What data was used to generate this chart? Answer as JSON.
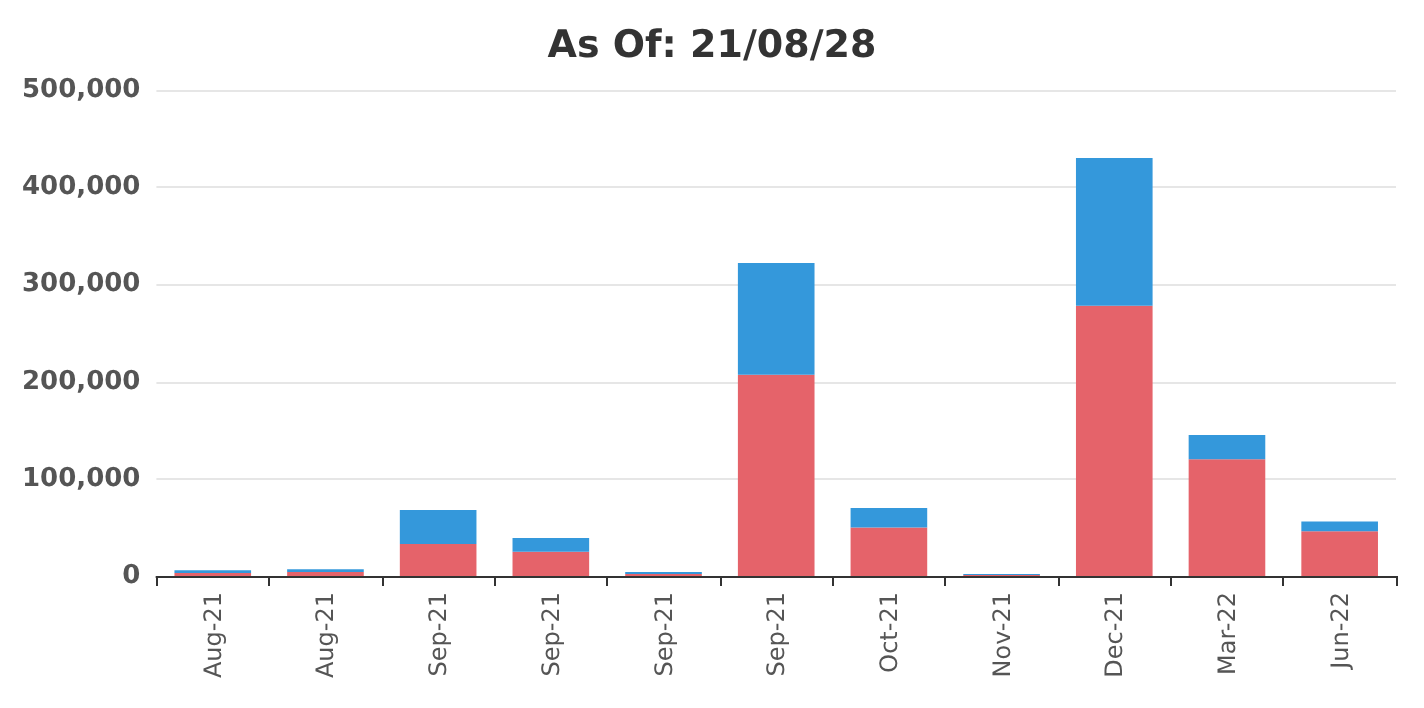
{
  "chart_data": {
    "type": "bar",
    "title": "As Of: 21/08/28",
    "stacked": true,
    "grid": "y",
    "categories": [
      "Aug-21",
      "Aug-21",
      "Sep-21",
      "Sep-21",
      "Sep-21",
      "Sep-21",
      "Oct-21",
      "Nov-21",
      "Dec-21",
      "Mar-22",
      "Jun-22"
    ],
    "series": [
      {
        "color": "#e5636a",
        "values": [
          3000,
          4000,
          33000,
          25000,
          2000,
          207000,
          50000,
          1000,
          278000,
          120000,
          46000
        ]
      },
      {
        "color": "#3498db",
        "values": [
          3000,
          3000,
          35000,
          14000,
          2000,
          115000,
          20000,
          1000,
          152000,
          25000,
          10000
        ]
      }
    ],
    "ylim": [
      0,
      500000
    ],
    "yticks": [
      0,
      {
        "value": 100000,
        "label": "100,000"
      },
      {
        "value": 200000,
        "label": "200,000"
      },
      {
        "value": 300000,
        "label": "300,000"
      },
      {
        "value": 400000,
        "label": "400,000"
      },
      {
        "value": 500000,
        "label": "500,000"
      }
    ]
  }
}
